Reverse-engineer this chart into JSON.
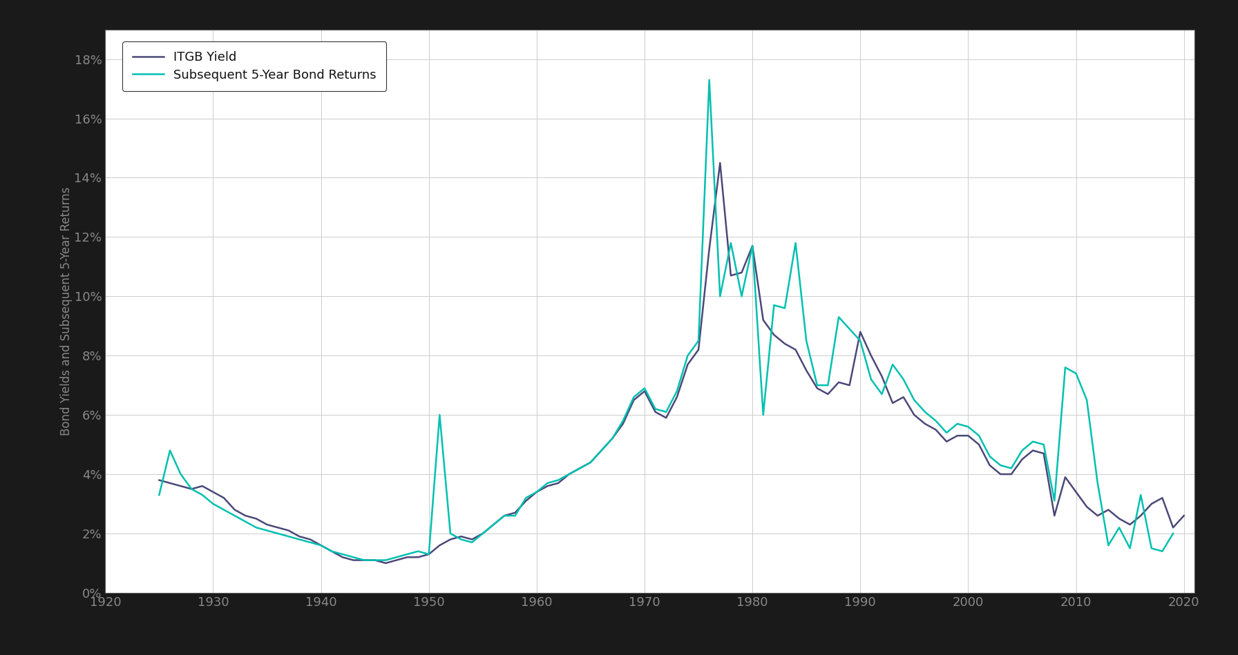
{
  "title": "",
  "ylabel": "Bond Yields and Subsequent 5-Year Returns",
  "background_color": "#1a1a1a",
  "plot_bg_color": "#ffffff",
  "grid_color": "#cccccc",
  "itgb_color": "#4a4878",
  "sub5yr_color": "#00c0b0",
  "itgb_label": "ITGB Yield",
  "sub5yr_label": "Subsequent 5-Year Bond Returns",
  "xlim": [
    1920,
    2021
  ],
  "ylim": [
    0.0,
    0.19
  ],
  "yticks": [
    0.0,
    0.02,
    0.04,
    0.06,
    0.08,
    0.1,
    0.12,
    0.14,
    0.16,
    0.18
  ],
  "xticks": [
    1920,
    1930,
    1940,
    1950,
    1960,
    1970,
    1980,
    1990,
    2000,
    2010,
    2020
  ],
  "itgb_years": [
    1925,
    1926,
    1927,
    1928,
    1929,
    1930,
    1931,
    1932,
    1933,
    1934,
    1935,
    1936,
    1937,
    1938,
    1939,
    1940,
    1941,
    1942,
    1943,
    1944,
    1945,
    1946,
    1947,
    1948,
    1949,
    1950,
    1951,
    1952,
    1953,
    1954,
    1955,
    1956,
    1957,
    1958,
    1959,
    1960,
    1961,
    1962,
    1963,
    1964,
    1965,
    1966,
    1967,
    1968,
    1969,
    1970,
    1971,
    1972,
    1973,
    1974,
    1975,
    1976,
    1977,
    1978,
    1979,
    1980,
    1981,
    1982,
    1983,
    1984,
    1985,
    1986,
    1987,
    1988,
    1989,
    1990,
    1991,
    1992,
    1993,
    1994,
    1995,
    1996,
    1997,
    1998,
    1999,
    2000,
    2001,
    2002,
    2003,
    2004,
    2005,
    2006,
    2007,
    2008,
    2009,
    2010,
    2011,
    2012,
    2013,
    2014,
    2015,
    2016,
    2017,
    2018,
    2019,
    2020
  ],
  "itgb_values": [
    0.038,
    0.037,
    0.036,
    0.035,
    0.036,
    0.034,
    0.032,
    0.028,
    0.026,
    0.025,
    0.023,
    0.022,
    0.021,
    0.019,
    0.018,
    0.016,
    0.014,
    0.012,
    0.011,
    0.011,
    0.011,
    0.01,
    0.011,
    0.012,
    0.012,
    0.013,
    0.016,
    0.018,
    0.019,
    0.018,
    0.02,
    0.023,
    0.026,
    0.027,
    0.031,
    0.034,
    0.036,
    0.037,
    0.04,
    0.042,
    0.044,
    0.048,
    0.052,
    0.057,
    0.065,
    0.068,
    0.061,
    0.059,
    0.066,
    0.077,
    0.082,
    0.116,
    0.145,
    0.107,
    0.108,
    0.117,
    0.092,
    0.087,
    0.084,
    0.082,
    0.075,
    0.069,
    0.067,
    0.071,
    0.07,
    0.088,
    0.08,
    0.073,
    0.064,
    0.066,
    0.06,
    0.057,
    0.055,
    0.051,
    0.053,
    0.053,
    0.05,
    0.043,
    0.04,
    0.04,
    0.045,
    0.048,
    0.047,
    0.026,
    0.039,
    0.034,
    0.029,
    0.026,
    0.028,
    0.025,
    0.023,
    0.026,
    0.03,
    0.032,
    0.022,
    0.026
  ],
  "sub5yr_years": [
    1925,
    1926,
    1927,
    1928,
    1929,
    1930,
    1931,
    1932,
    1933,
    1934,
    1935,
    1936,
    1937,
    1938,
    1939,
    1940,
    1941,
    1942,
    1943,
    1944,
    1945,
    1946,
    1947,
    1948,
    1949,
    1950,
    1951,
    1952,
    1953,
    1954,
    1955,
    1956,
    1957,
    1958,
    1959,
    1960,
    1961,
    1962,
    1963,
    1964,
    1965,
    1966,
    1967,
    1968,
    1969,
    1970,
    1971,
    1972,
    1973,
    1974,
    1975,
    1976,
    1977,
    1978,
    1979,
    1980,
    1981,
    1982,
    1983,
    1984,
    1985,
    1986,
    1987,
    1988,
    1989,
    1990,
    1991,
    1992,
    1993,
    1994,
    1995,
    1996,
    1997,
    1998,
    1999,
    2000,
    2001,
    2002,
    2003,
    2004,
    2005,
    2006,
    2007,
    2008,
    2009,
    2010,
    2011,
    2012,
    2013,
    2014,
    2015,
    2016,
    2017,
    2018,
    2019
  ],
  "sub5yr_values": [
    0.033,
    0.048,
    0.04,
    0.035,
    0.033,
    0.03,
    0.028,
    0.026,
    0.024,
    0.022,
    0.021,
    0.02,
    0.019,
    0.018,
    0.017,
    0.016,
    0.014,
    0.013,
    0.012,
    0.011,
    0.011,
    0.011,
    0.012,
    0.013,
    0.014,
    0.013,
    0.06,
    0.02,
    0.018,
    0.017,
    0.02,
    0.023,
    0.026,
    0.026,
    0.032,
    0.034,
    0.037,
    0.038,
    0.04,
    0.042,
    0.044,
    0.048,
    0.052,
    0.058,
    0.066,
    0.069,
    0.062,
    0.061,
    0.068,
    0.08,
    0.085,
    0.173,
    0.1,
    0.118,
    0.1,
    0.117,
    0.06,
    0.097,
    0.096,
    0.118,
    0.085,
    0.07,
    0.07,
    0.093,
    0.089,
    0.085,
    0.072,
    0.067,
    0.077,
    0.072,
    0.065,
    0.061,
    0.058,
    0.054,
    0.057,
    0.056,
    0.053,
    0.046,
    0.043,
    0.042,
    0.048,
    0.051,
    0.05,
    0.031,
    0.076,
    0.074,
    0.065,
    0.037,
    0.016,
    0.022,
    0.015,
    0.033,
    0.015,
    0.014,
    0.02
  ]
}
